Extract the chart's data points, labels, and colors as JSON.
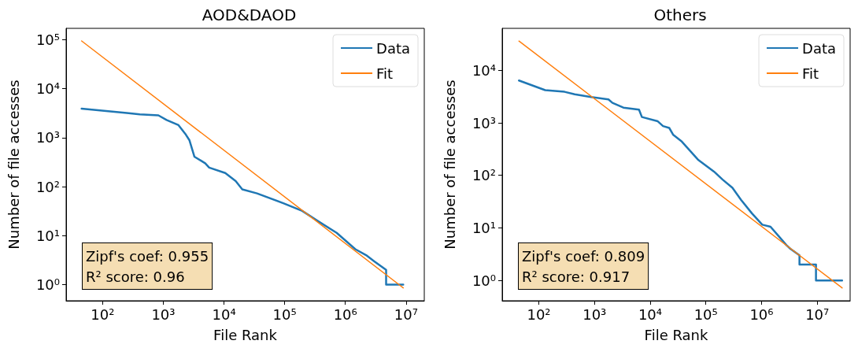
{
  "chart_data": [
    {
      "type": "line",
      "title": "AOD&DAOD",
      "xlabel": "File Rank",
      "ylabel": "Number of file accesses",
      "log": "xy",
      "legend": "top right",
      "grid": false,
      "xlim": [
        25,
        20000000
      ],
      "ylim": [
        0.47,
        170000
      ],
      "xticks": [
        {
          "value": 100,
          "label": "10²"
        },
        {
          "value": 1000,
          "label": "10³"
        },
        {
          "value": 10000,
          "label": "10⁴"
        },
        {
          "value": 100000,
          "label": "10⁵"
        },
        {
          "value": 1000000,
          "label": "10⁶"
        },
        {
          "value": 10000000,
          "label": "10⁷"
        }
      ],
      "yticks": [
        {
          "value": 1,
          "label": "10⁰"
        },
        {
          "value": 10,
          "label": "10¹"
        },
        {
          "value": 100,
          "label": "10²"
        },
        {
          "value": 1000,
          "label": "10³"
        },
        {
          "value": 10000,
          "label": "10⁴"
        },
        {
          "value": 100000,
          "label": "10⁵"
        }
      ],
      "annotations": [
        "Zipf's coef: 0.955",
        "R² score: 0.96"
      ],
      "series": [
        {
          "name": "Data",
          "color": "#1f77b4",
          "x": [
            45,
            250,
            410,
            830,
            1130,
            1780,
            2300,
            2700,
            3250,
            4900,
            5700,
            10500,
            15600,
            20000,
            35000,
            95000,
            195000,
            350000,
            720000,
            1460000,
            2200000,
            3000000,
            4700000,
            4700000,
            9000000
          ],
          "values": [
            3900,
            3200,
            3000,
            2850,
            2300,
            1800,
            1200,
            880,
            410,
            300,
            245,
            190,
            130,
            88,
            73,
            46,
            32,
            20,
            11.4,
            5.3,
            4,
            3,
            2,
            1,
            1
          ]
        },
        {
          "name": "Fit",
          "color": "#ff7f0e",
          "x": [
            45,
            9000000
          ],
          "values": [
            94000,
            0.86
          ]
        }
      ]
    },
    {
      "type": "line",
      "title": "Others",
      "xlabel": "File Rank",
      "ylabel": "Number of file accesses",
      "log": "xy",
      "legend": "top right",
      "grid": false,
      "xlim": [
        22,
        39000000
      ],
      "ylim": [
        0.41,
        63000
      ],
      "xticks": [
        {
          "value": 100,
          "label": "10²"
        },
        {
          "value": 1000,
          "label": "10³"
        },
        {
          "value": 10000,
          "label": "10⁴"
        },
        {
          "value": 100000,
          "label": "10⁵"
        },
        {
          "value": 1000000,
          "label": "10⁶"
        },
        {
          "value": 10000000,
          "label": "10⁷"
        }
      ],
      "yticks": [
        {
          "value": 1,
          "label": "10⁰"
        },
        {
          "value": 10,
          "label": "10¹"
        },
        {
          "value": 100,
          "label": "10²"
        },
        {
          "value": 1000,
          "label": "10³"
        },
        {
          "value": 10000,
          "label": "10⁴"
        }
      ],
      "annotations": [
        "Zipf's coef: 0.809",
        "R² score: 0.917"
      ],
      "series": [
        {
          "name": "Data",
          "color": "#1f77b4",
          "x": [
            44,
            130,
            290,
            440,
            870,
            1780,
            2100,
            3300,
            6300,
            7100,
            13700,
            17000,
            22000,
            26000,
            37000,
            72000,
            140000,
            200000,
            300000,
            430000,
            670000,
            1030000,
            1450000,
            2000000,
            2800000,
            3300000,
            4800000,
            4800000,
            9500000,
            9500000,
            28000000
          ],
          "values": [
            6400,
            4200,
            3900,
            3500,
            3100,
            2800,
            2400,
            1950,
            1780,
            1290,
            1070,
            870,
            800,
            590,
            440,
            200,
            118,
            83,
            58,
            34,
            19,
            11.5,
            10.5,
            7.1,
            4.7,
            4,
            3,
            2,
            2,
            1,
            1
          ]
        },
        {
          "name": "Fit",
          "color": "#ff7f0e",
          "x": [
            44,
            28000000
          ],
          "values": [
            36000,
            0.72
          ]
        }
      ]
    }
  ]
}
